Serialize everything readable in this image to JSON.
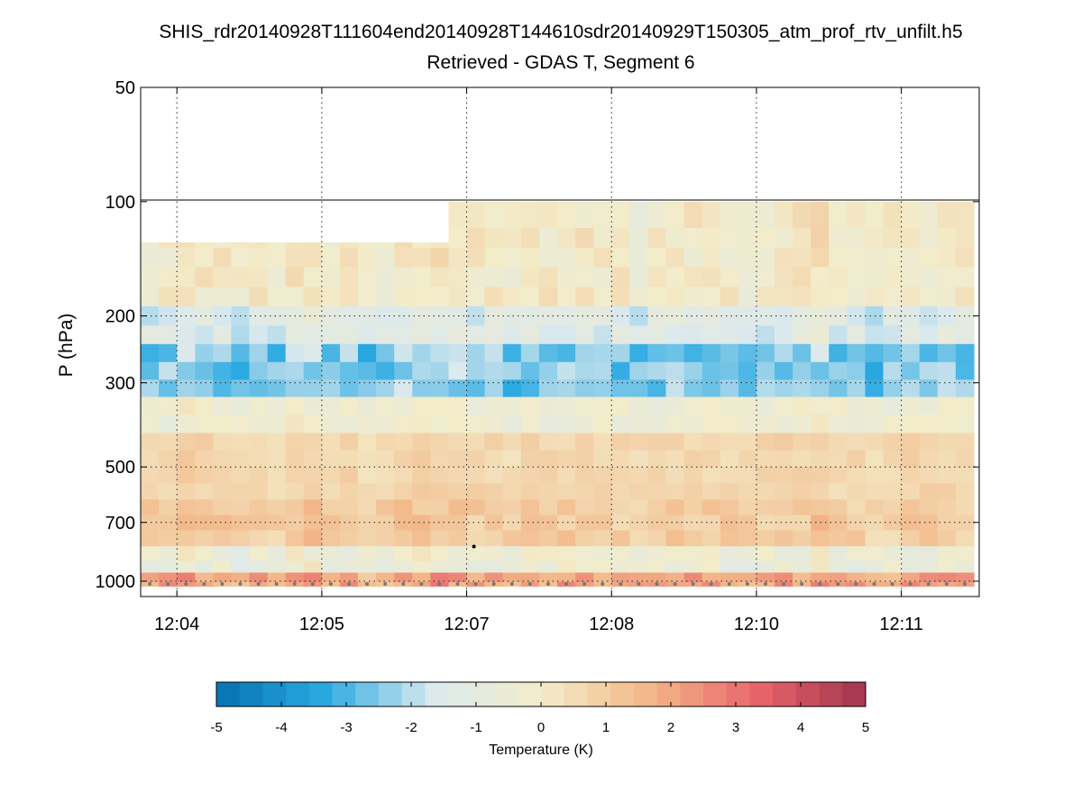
{
  "chart_data": {
    "type": "heatmap",
    "title": "SHIS_rdr20140928T111604end20140928T144610sdr20140929T150305_atm_prof_rtv_unfilt.h5",
    "subtitle": "Retrieved - GDAS T, Segment 6",
    "ylabel": "P (hPa)",
    "y_scale": "log",
    "y_reversed": true,
    "ylim": [
      50,
      1130
    ],
    "y_ticks": [
      {
        "value": 50,
        "label": "50"
      },
      {
        "value": 100,
        "label": "100"
      },
      {
        "value": 200,
        "label": "200"
      },
      {
        "value": 300,
        "label": "300"
      },
      {
        "value": 500,
        "label": "500"
      },
      {
        "value": 700,
        "label": "700"
      },
      {
        "value": 1000,
        "label": "1000"
      }
    ],
    "x_ticks": [
      {
        "value": 2,
        "label": "12:04"
      },
      {
        "value": 10,
        "label": "12:05"
      },
      {
        "value": 18,
        "label": "12:07"
      },
      {
        "value": 26,
        "label": "12:08"
      },
      {
        "value": 34,
        "label": "12:10"
      },
      {
        "value": 42,
        "label": "12:11"
      }
    ],
    "xlim": [
      0,
      46.3
    ],
    "profile_count": 46,
    "pressure_levels": [
      110,
      125,
      140,
      158,
      178,
      200,
      225,
      250,
      280,
      310,
      345,
      385,
      430,
      475,
      525,
      580,
      640,
      700,
      770,
      850,
      920,
      980,
      1030
    ],
    "profile_top_pressure": [
      128,
      128,
      128,
      128,
      128,
      128,
      128,
      128,
      128,
      128,
      128,
      128,
      128,
      128,
      128,
      128,
      128,
      100,
      100,
      100,
      100,
      100,
      100,
      100,
      100,
      100,
      100,
      100,
      100,
      100,
      100,
      100,
      100,
      100,
      100,
      100,
      100,
      100,
      100,
      100,
      100,
      100,
      100,
      100,
      100,
      100
    ],
    "surface_pressure": 1030,
    "bands": [
      {
        "pmin": 100,
        "pmax": 185,
        "mean": 0.0,
        "amp": 0.9
      },
      {
        "pmin": 185,
        "pmax": 235,
        "mean": -1.4,
        "amp": 0.9
      },
      {
        "pmin": 235,
        "pmax": 330,
        "mean": -2.5,
        "amp": 1.1
      },
      {
        "pmin": 330,
        "pmax": 420,
        "mean": -0.4,
        "amp": 0.7
      },
      {
        "pmin": 420,
        "pmax": 600,
        "mean": 0.7,
        "amp": 0.5
      },
      {
        "pmin": 600,
        "pmax": 780,
        "mean": 1.0,
        "amp": 0.8
      },
      {
        "pmin": 780,
        "pmax": 960,
        "mean": -0.5,
        "amp": 1.0
      },
      {
        "pmin": 960,
        "pmax": 1130,
        "mean": 2.0,
        "amp": 1.2
      }
    ],
    "colorbar": {
      "label": "Temperature (K)",
      "vmin": -5,
      "vmax": 5,
      "steps": 28,
      "ticks": [
        -5,
        -4,
        -3,
        -2,
        -1,
        0,
        1,
        2,
        3,
        4,
        5
      ],
      "colors": [
        "#0571b0",
        "#2aaae2",
        "#dbe9ee",
        "#f3ecc9",
        "#f3b788",
        "#e8656a",
        "#a1344f"
      ]
    },
    "grid": true,
    "surface_markers": true,
    "marker_point": {
      "x": 18.4,
      "p": 810
    }
  }
}
